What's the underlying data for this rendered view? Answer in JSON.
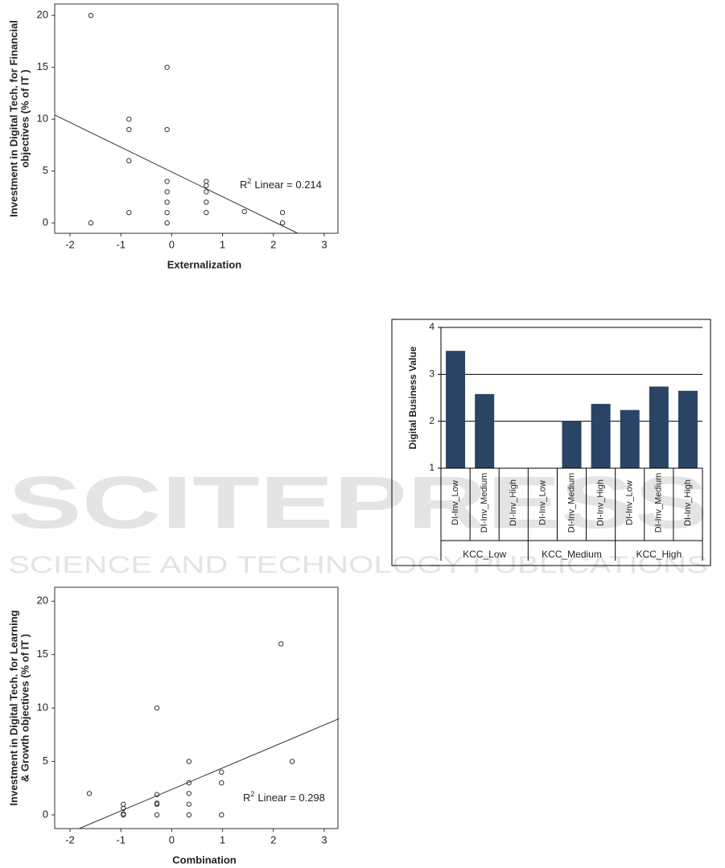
{
  "chart_data": [
    {
      "type": "scatter",
      "x_label": "Externalization",
      "y_label": [
        "Investment in Digital Tech. for Financial",
        "objectives (% of IT )"
      ],
      "x": [
        -1.59,
        -1.59,
        -0.84,
        -0.84,
        -0.84,
        -0.84,
        -0.09,
        -0.09,
        -0.09,
        -0.09,
        -0.09,
        -0.09,
        -0.09,
        0.68,
        0.68,
        0.68,
        0.68,
        0.68,
        1.43,
        2.18,
        2.18
      ],
      "values": [
        20,
        0,
        10,
        9,
        6,
        1,
        15,
        9,
        4,
        3,
        2,
        1,
        0,
        4,
        3.6,
        3,
        2,
        1,
        1.1,
        1,
        0
      ],
      "fit": {
        "x": [
          -2.3,
          2.48
        ],
        "y": [
          10.4,
          -1
        ]
      },
      "annotation": {
        "base": "R",
        "sup": "2",
        "text": "Linear = 0.214"
      },
      "xlim": [
        -2.3,
        3.27
      ],
      "xticks": [
        -2,
        -1,
        0,
        1,
        2,
        3
      ],
      "ylim": [
        -1,
        21.1
      ],
      "yticks": [
        0,
        5,
        10,
        15,
        20
      ]
    },
    {
      "type": "bar",
      "y_label": "Digital Business Value",
      "categories": [
        "DI-Inv_Low",
        "DI-Inv_Medium",
        "DI-Inv_High",
        "DI-Inv_Low",
        "DI-Inv_Medium",
        "DI-Inv_High",
        "DI-Inv_Low",
        "DI-Inv_Medium",
        "DI-Inv_High"
      ],
      "groups": [
        "KCC_Low",
        "KCC_Medium",
        "KCC_High"
      ],
      "values": [
        3.5,
        2.58,
        null,
        null,
        2.0,
        2.37,
        2.24,
        2.74,
        2.65
      ],
      "color": "#2a4466",
      "ylim": [
        1,
        4
      ],
      "yticks": [
        1,
        2,
        3,
        4
      ],
      "grid": true
    },
    {
      "type": "scatter",
      "x_label": "Combination",
      "y_label": [
        "Investment in Digital Tech. for Learning",
        "& Growth objectives (% of IT )"
      ],
      "x": [
        -1.62,
        -0.95,
        -0.95,
        -0.95,
        -0.95,
        -0.29,
        -0.29,
        -0.29,
        -0.29,
        -0.29,
        0.34,
        0.34,
        0.34,
        0.34,
        0.34,
        0.98,
        0.98,
        0.98,
        2.15,
        2.37
      ],
      "values": [
        2,
        1,
        0.6,
        0.1,
        0,
        10,
        1.9,
        1.1,
        1,
        0,
        5,
        3,
        2,
        1,
        0,
        4,
        3,
        0,
        16,
        5
      ],
      "fit": {
        "x": [
          -1.82,
          3.29
        ],
        "y": [
          -1.28,
          9.0
        ]
      },
      "annotation": {
        "base": "R",
        "sup": "2",
        "text": "Linear = 0.298"
      },
      "xlim": [
        -2.3,
        3.27
      ],
      "xticks": [
        -2,
        -1,
        0,
        1,
        2,
        3
      ],
      "ylim": [
        -1.28,
        21.3
      ],
      "yticks": [
        0,
        5,
        10,
        15,
        20
      ]
    }
  ],
  "watermark": {
    "title": "SCITEPRESS",
    "subtitle": "SCIENCE AND TECHNOLOGY PUBLICATIONS"
  }
}
